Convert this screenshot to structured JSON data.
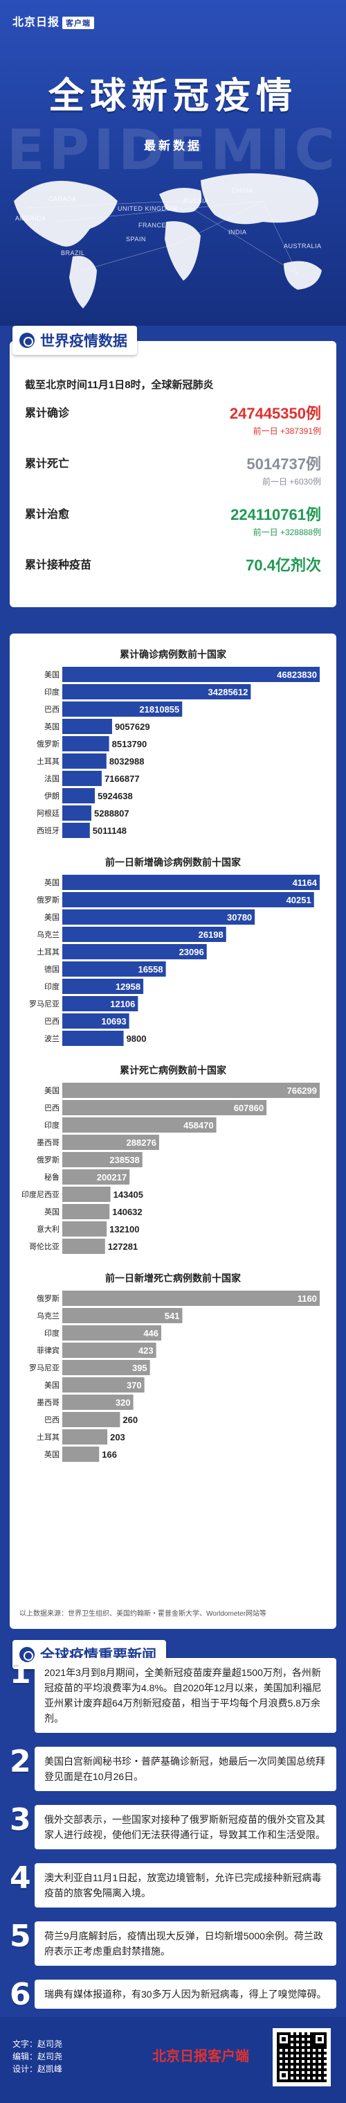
{
  "header": {
    "brand": "北京日报",
    "brand_tag": "客户端",
    "title": "全球新冠疫情",
    "subtitle": "最新数据",
    "watermark": "EPIDEMIC",
    "map_labels": [
      "CANADA",
      "AMERICA",
      "RUSSIA",
      "CHINA",
      "AUSTRALIA",
      "BRAZIL",
      "UNITED KINGDOM",
      "FRANCE",
      "SPAIN",
      "INDIA"
    ]
  },
  "summary": {
    "section_title": "世界疫情数据",
    "headline": "截至北京时间11月1日8时，全球新冠肺炎",
    "stats": [
      {
        "label": "累计确诊",
        "value": "247445350例",
        "delta": "前一日 +387391例",
        "color": "#e2312d"
      },
      {
        "label": "累计死亡",
        "value": "5014737例",
        "delta": "前一日 +6030例",
        "color": "#8a8f99"
      },
      {
        "label": "累计治愈",
        "value": "224110761例",
        "delta": "前一日 +328888例",
        "color": "#1e9a52"
      },
      {
        "label": "累计接种疫苗",
        "value": "70.4亿剂次",
        "delta": "",
        "color": "#1e9a52"
      }
    ]
  },
  "chart_data": [
    {
      "type": "bar",
      "title": "累计确诊病例数前十国家",
      "categories": [
        "美国",
        "印度",
        "巴西",
        "英国",
        "俄罗斯",
        "土耳其",
        "法国",
        "伊朗",
        "阿根廷",
        "西班牙"
      ],
      "values": [
        46823830,
        34285612,
        21810855,
        9057629,
        8513790,
        8032988,
        7166877,
        5924638,
        5288807,
        5011148
      ],
      "color": "#2547a8"
    },
    {
      "type": "bar",
      "title": "前一日新增确诊病例数前十国家",
      "categories": [
        "英国",
        "俄罗斯",
        "美国",
        "乌克兰",
        "土耳其",
        "德国",
        "印度",
        "罗马尼亚",
        "巴西",
        "波兰"
      ],
      "values": [
        41164,
        40251,
        30780,
        26198,
        23096,
        16558,
        12958,
        12106,
        10693,
        9800
      ],
      "color": "#2547a8"
    },
    {
      "type": "bar",
      "title": "累计死亡病例数前十国家",
      "categories": [
        "美国",
        "巴西",
        "印度",
        "墨西哥",
        "俄罗斯",
        "秘鲁",
        "印度尼西亚",
        "英国",
        "意大利",
        "哥伦比亚"
      ],
      "values": [
        766299,
        607860,
        458470,
        288276,
        238538,
        200217,
        143405,
        140632,
        132100,
        127281
      ],
      "color": "#9a9a9a"
    },
    {
      "type": "bar",
      "title": "前一日新增死亡病例数前十国家",
      "categories": [
        "俄罗斯",
        "乌克兰",
        "印度",
        "菲律宾",
        "罗马尼亚",
        "美国",
        "墨西哥",
        "巴西",
        "土耳其",
        "英国"
      ],
      "values": [
        1160,
        541,
        446,
        423,
        395,
        370,
        320,
        260,
        203,
        166
      ],
      "color": "#9a9a9a"
    }
  ],
  "charts_source": "以上数据来源：世界卫生组织、美国约翰斯・霍普金斯大学、Worldometer网站等",
  "news": {
    "section_title": "全球疫情重要新闻",
    "items": [
      {
        "num": "1",
        "text": "2021年3月到8月期间，全美新冠疫苗废弃量超1500万剂，各州新冠疫苗的平均浪费率为4.8%。自2020年12月以来，美国加利福尼亚州累计废弃超64万剂新冠疫苗，相当于平均每个月浪费5.8万余剂。"
      },
      {
        "num": "2",
        "text": "美国白宫新闻秘书珍・普萨基确诊新冠，她最后一次同美国总统拜登见面是在10月26日。"
      },
      {
        "num": "3",
        "text": "俄外交部表示，一些国家对接种了俄罗斯新冠疫苗的俄外交官及其家人进行歧视，使他们无法获得通行证，导致其工作和生活受限。"
      },
      {
        "num": "4",
        "text": "澳大利亚自11月1日起，放宽边境管制，允许已完成接种新冠病毒疫苗的旅客免隔离入境。"
      },
      {
        "num": "5",
        "text": "荷兰9月底解封后，疫情出现大反弹，日均新增5000余例。荷兰政府表示正考虑重启封禁措施。"
      },
      {
        "num": "6",
        "text": "瑞典有媒体报道称，有30多万人因为新冠病毒，得上了嗅觉障碍。"
      }
    ]
  },
  "footer": {
    "credit_text": "文字：赵司尧",
    "credit_editor": "编辑：赵司尧",
    "credit_design": "设计：赵凯峰",
    "brand": "北京日报客户端"
  }
}
